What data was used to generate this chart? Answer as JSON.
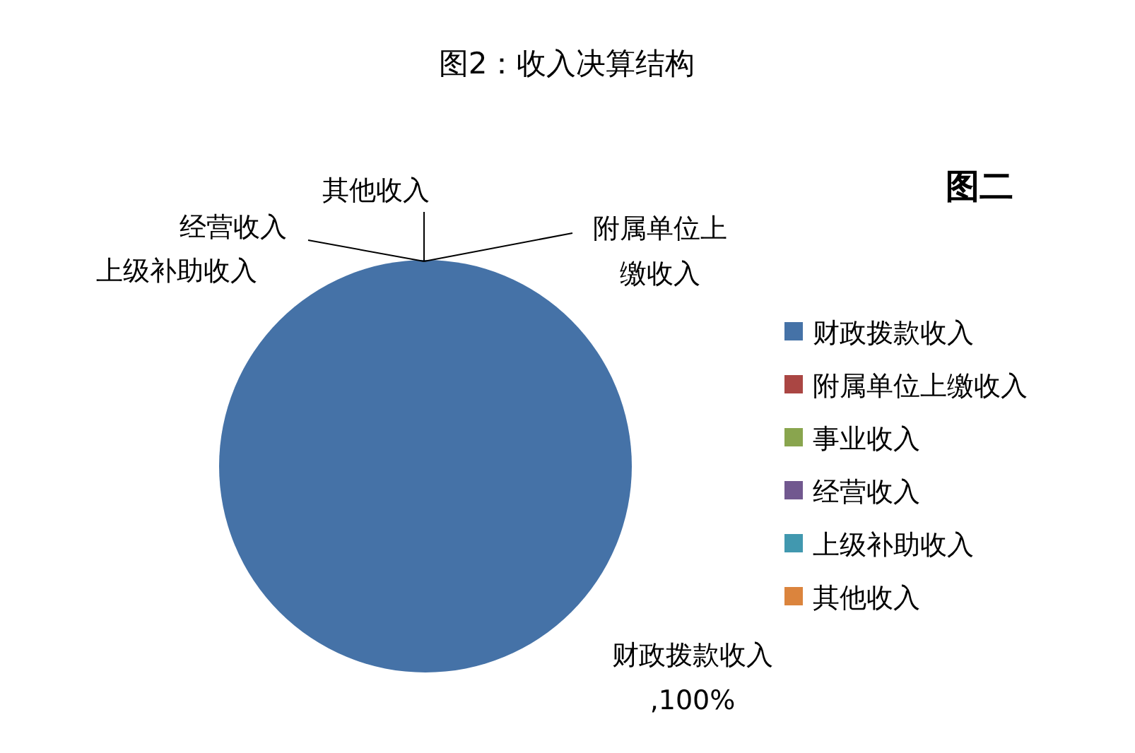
{
  "chart_data": {
    "type": "pie",
    "title": "图2：收入决算结构",
    "categories": [
      "财政拨款收入",
      "附属单位上缴收入",
      "事业收入",
      "经营收入",
      "上级补助收入",
      "其他收入"
    ],
    "values": [
      100,
      0,
      0,
      0,
      0,
      0
    ],
    "colors": [
      "#4572a7",
      "#aa4643",
      "#89a54e",
      "#71588f",
      "#4198af",
      "#db843d"
    ],
    "value_labels": [
      "财政拨款收入,100%",
      "附属单位上缴收入",
      null,
      "经营收入",
      "上级补助收入",
      "其他收入"
    ],
    "legend": "right",
    "annotations": [
      "图二"
    ]
  }
}
